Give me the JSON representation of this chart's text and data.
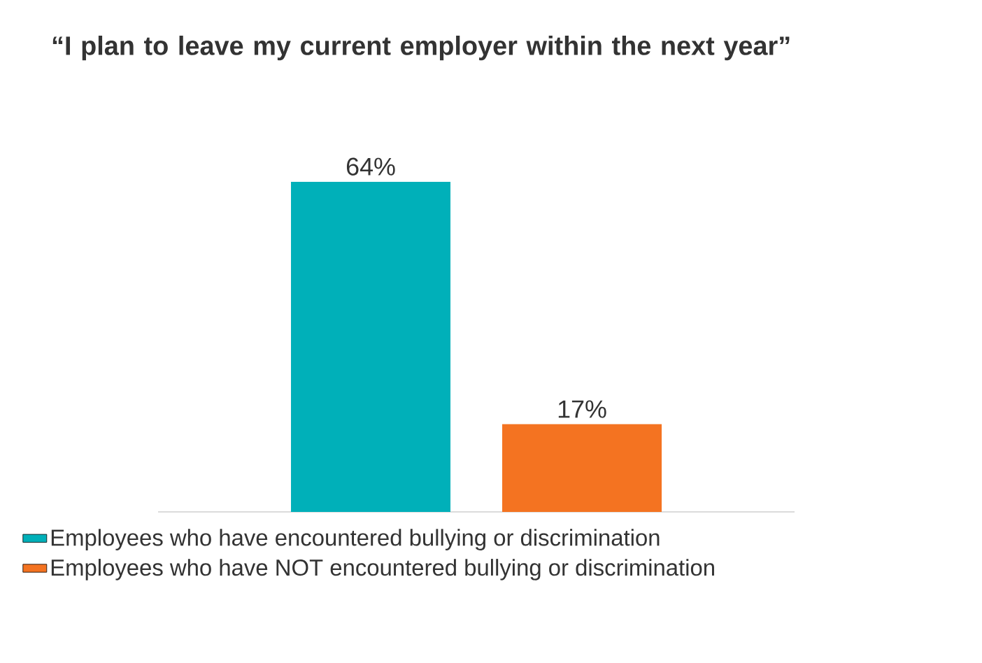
{
  "chart_data": {
    "type": "bar",
    "title": "**“I plan to leave my current employer within the next year”**",
    "categories": [
      null
    ],
    "series": [
      {
        "name": "Employees who have encountered bullying or discrimination",
        "color": "#00b0b9",
        "values": [
          64
        ],
        "value_labels": [
          "64%"
        ]
      },
      {
        "name": "Employees who have NOT encountered bullying or discrimination",
        "color": "#f47321",
        "values": [
          17
        ],
        "value_labels": [
          "17%"
        ]
      }
    ],
    "legend": "bottom"
  }
}
